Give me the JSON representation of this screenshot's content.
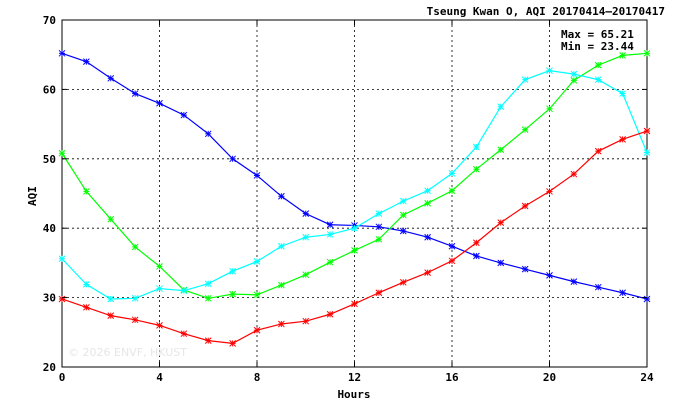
{
  "chart_data": {
    "type": "line",
    "title": "Tseung Kwan O, AQI 20170414–20170417",
    "stats": {
      "max_label": "Max = 65.21",
      "min_label": "Min = 23.44"
    },
    "xlabel": "Hours",
    "ylabel": "AQI",
    "xlim": [
      0,
      24
    ],
    "ylim": [
      20,
      70
    ],
    "xticks": [
      0,
      4,
      8,
      12,
      16,
      20,
      24
    ],
    "yticks": [
      20,
      30,
      40,
      50,
      60,
      70
    ],
    "grid": true,
    "watermark": "© 2026  ENVF, HKUST",
    "x": [
      0,
      1,
      2,
      3,
      4,
      5,
      6,
      7,
      8,
      9,
      10,
      11,
      12,
      13,
      14,
      15,
      16,
      17,
      18,
      19,
      20,
      21,
      22,
      23,
      24
    ],
    "series": [
      {
        "color": "#0000ff",
        "values": [
          65.2,
          64.0,
          61.6,
          59.4,
          58.0,
          56.3,
          53.6,
          50.0,
          47.6,
          44.6,
          42.1,
          40.5,
          40.4,
          40.2,
          39.6,
          38.7,
          37.4,
          36.0,
          35.0,
          34.1,
          33.2,
          32.3,
          31.5,
          30.7,
          29.8
        ]
      },
      {
        "color": "#00ff00",
        "values": [
          50.8,
          45.3,
          41.3,
          37.3,
          34.5,
          31.1,
          29.9,
          30.5,
          30.4,
          31.8,
          33.3,
          35.1,
          36.8,
          38.4,
          41.9,
          43.6,
          45.4,
          48.5,
          51.3,
          54.2,
          57.2,
          61.3,
          63.5,
          64.9,
          65.2
        ]
      },
      {
        "color": "#00ffff",
        "values": [
          35.6,
          31.9,
          29.8,
          29.9,
          31.3,
          31.0,
          32.0,
          33.8,
          35.2,
          37.4,
          38.7,
          39.1,
          40.0,
          42.1,
          43.9,
          45.4,
          47.9,
          51.7,
          57.5,
          61.4,
          62.7,
          62.2,
          61.4,
          59.4,
          50.9
        ]
      },
      {
        "color": "#ff0000",
        "values": [
          29.8,
          28.6,
          27.4,
          26.8,
          26.0,
          24.8,
          23.8,
          23.4,
          25.3,
          26.2,
          26.6,
          27.6,
          29.1,
          30.7,
          32.2,
          33.6,
          35.3,
          37.9,
          40.8,
          43.2,
          45.3,
          47.8,
          51.1,
          52.8,
          54.0
        ]
      }
    ]
  }
}
